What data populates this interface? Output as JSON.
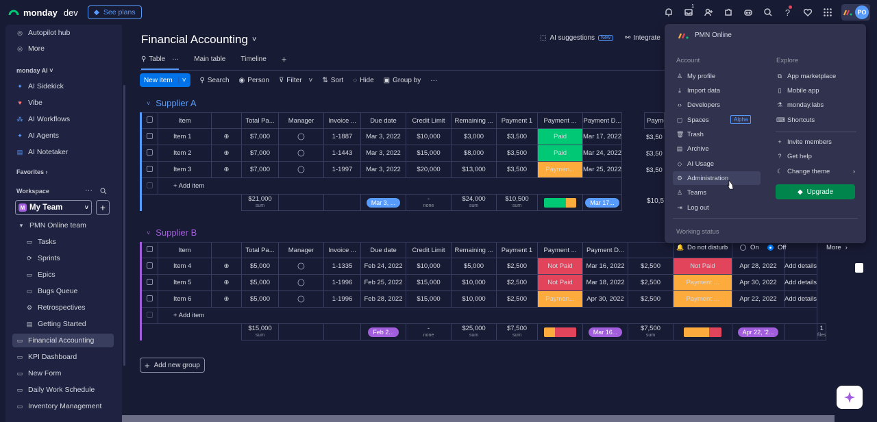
{
  "topbar": {
    "brand": "monday",
    "brand_suffix": "dev",
    "see_plans": "See plans",
    "inbox_badge": "1",
    "avatar_initials": "PO"
  },
  "sidebar": {
    "top_items": [
      "Autopilot hub",
      "More"
    ],
    "ai_header": "monday AI",
    "ai_items": [
      "AI Sidekick",
      "Vibe",
      "AI Workflows",
      "AI Agents",
      "AI Notetaker"
    ],
    "favorites_header": "Favorites",
    "workspace_header": "Workspace",
    "team_initial": "M",
    "team_name": "My Team",
    "folder": "PMN Online team",
    "folder_items": [
      "Tasks",
      "Sprints",
      "Epics",
      "Bugs Queue",
      "Retrospectives",
      "Getting Started"
    ],
    "boards": [
      "Financial Accounting",
      "KPI Dashboard",
      "New Form",
      "Daily Work Schedule",
      "Inventory Management"
    ]
  },
  "board": {
    "title": "Financial Accounting",
    "tabs": [
      "Table",
      "Main table",
      "Timeline"
    ],
    "tab_add": "+",
    "ai_suggestions": "AI suggestions",
    "new_tag": "New",
    "integrate": "Integrate",
    "toolbar": {
      "new_item": "New item",
      "search": "Search",
      "person": "Person",
      "filter": "Filter",
      "sort": "Sort",
      "hide": "Hide",
      "group_by": "Group by"
    },
    "columns": [
      "Item",
      "Total Pa...",
      "Manager",
      "Invoice ...",
      "Due date",
      "Credit Limit",
      "Remaining ...",
      "Payment 1",
      "Payment ...",
      "Payment D...",
      "Payme"
    ],
    "columns_b": [
      "Item",
      "Total Pa...",
      "Manager",
      "Invoice ...",
      "Due date",
      "Credit Limit",
      "Remaining ...",
      "Payment 1",
      "Payment ...",
      "Payment D..."
    ],
    "add_item": "+ Add item",
    "sum_label": "sum",
    "none_label": "none",
    "files_label": "files",
    "groups": [
      {
        "name": "Supplier A",
        "color": "#579bfc",
        "rows": [
          {
            "item": "Item 1",
            "total": "$7,000",
            "invoice": "1-1887",
            "due": "Mar 3, 2022",
            "credit": "$10,000",
            "remaining": "$3,000",
            "pay1": "$3,500",
            "status": "Paid",
            "paydate": "Mar 17, 2022",
            "pay2": "$3,50"
          },
          {
            "item": "Item 2",
            "total": "$7,000",
            "invoice": "1-1443",
            "due": "Mar 3, 2022",
            "credit": "$15,000",
            "remaining": "$8,000",
            "pay1": "$3,500",
            "status": "Paid",
            "paydate": "Mar 24, 2022",
            "pay2": "$3,50"
          },
          {
            "item": "Item 3",
            "total": "$7,000",
            "invoice": "1-1997",
            "due": "Mar 3, 2022",
            "credit": "$20,000",
            "remaining": "$13,000",
            "pay1": "$3,500",
            "status": "Paymen...",
            "paydate": "Mar 25, 2022",
            "pay2": "$3,50"
          }
        ],
        "summary": {
          "total": "$21,000",
          "due": "Mar 3, ...",
          "credit": "-",
          "remaining": "$24,000",
          "pay1": "$10,500",
          "paydate": "Mar 17...",
          "pay2": "$10,5"
        }
      },
      {
        "name": "Supplier B",
        "color": "#a25ddc",
        "rows": [
          {
            "item": "Item 4",
            "total": "$5,000",
            "invoice": "1-1335",
            "due": "Feb 24, 2022",
            "credit": "$10,000",
            "remaining": "$5,000",
            "pay1": "$2,500",
            "status": "Not Paid",
            "paydate": "Mar 16, 2022",
            "pay2": "$2,500",
            "status2": "Not Paid",
            "date2": "Apr 28, 2022",
            "details": "Add details"
          },
          {
            "item": "Item 5",
            "total": "$5,000",
            "invoice": "1-1996",
            "due": "Feb 25, 2022",
            "credit": "$15,000",
            "remaining": "$10,000",
            "pay1": "$2,500",
            "status": "Not Paid",
            "paydate": "Mar 18, 2022",
            "pay2": "$2,500",
            "status2": "Payment ...",
            "date2": "Apr 30, 2022",
            "details": "Add details"
          },
          {
            "item": "Item 6",
            "total": "$5,000",
            "invoice": "1-1996",
            "due": "Feb 28, 2022",
            "credit": "$15,000",
            "remaining": "$10,000",
            "pay1": "$2,500",
            "status": "Paymen...",
            "paydate": "Apr 30, 2022",
            "pay2": "$2,500",
            "status2": "Payment ...",
            "date2": "Apr 22, 2022",
            "details": "Add details"
          }
        ],
        "summary": {
          "total": "$15,000",
          "due": "Feb 2...",
          "credit": "-",
          "remaining": "$25,000",
          "pay1": "$7,500",
          "paydate": "Mar 16...",
          "pay2": "$7,500",
          "date2": "Apr 22, '2...",
          "files": "1"
        }
      }
    ],
    "add_group": "Add new group"
  },
  "menu": {
    "org": "PMN Online",
    "account_header": "Account",
    "explore_header": "Explore",
    "account_items": [
      "My profile",
      "Import data",
      "Developers",
      "Spaces",
      "Trash",
      "Archive",
      "AI Usage",
      "Administration",
      "Teams",
      "Log out"
    ],
    "alpha_tag": "Alpha",
    "explore_items": [
      "App marketplace",
      "Mobile app",
      "monday.labs",
      "Shortcuts"
    ],
    "explore_items2": [
      "Invite members",
      "Get help",
      "Change theme"
    ],
    "upgrade": "Upgrade",
    "working_status": "Working status",
    "dnd": "Do not disturb",
    "on": "On",
    "off": "Off",
    "more": "More"
  },
  "colors": {
    "paid": "#00c875",
    "pending": "#fdab3d",
    "not_paid": "#e2445c",
    "accent": "#0073ea"
  }
}
